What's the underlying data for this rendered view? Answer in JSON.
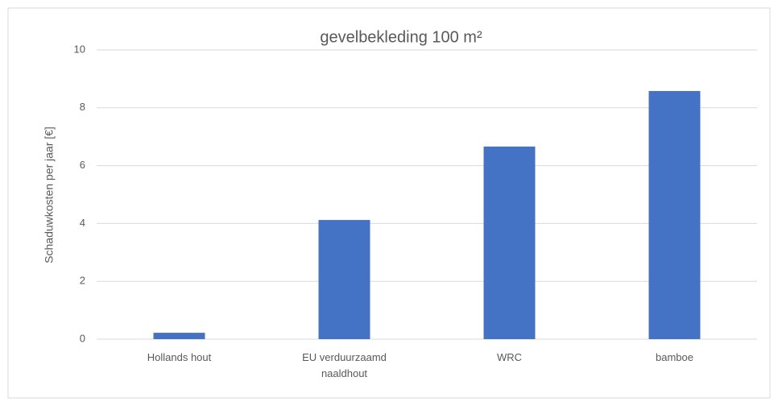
{
  "chart_data": {
    "type": "bar",
    "title": "gevelbekleding 100 m²",
    "y_label": "Schaduwkosten per jaar [€]",
    "categories": [
      "Hollands hout",
      "EU verduurzaamd naaldhout",
      "WRC",
      "bamboe"
    ],
    "values": [
      0.22,
      4.12,
      6.66,
      8.58
    ],
    "color": "#4472c4",
    "ylim": [
      0,
      10
    ],
    "yticks": [
      0,
      2,
      4,
      6,
      8,
      10
    ],
    "grid": true
  }
}
